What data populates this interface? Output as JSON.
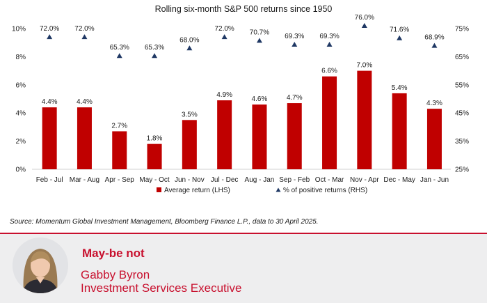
{
  "chart_data": {
    "type": "bar",
    "title": "Rolling six-month S&P 500 returns since 1950",
    "categories": [
      "Feb - Jul",
      "Mar - Aug",
      "Apr - Sep",
      "May - Oct",
      "Jun - Nov",
      "Jul - Dec",
      "Aug - Jan",
      "Sep - Feb",
      "Oct - Mar",
      "Nov - Apr",
      "Dec - May",
      "Jan - Jun"
    ],
    "series": [
      {
        "name": "Average return (LHS)",
        "type": "bar",
        "axis": "left",
        "color": "#c00000",
        "values": [
          4.4,
          4.4,
          2.7,
          1.8,
          3.5,
          4.9,
          4.6,
          4.7,
          6.6,
          7.0,
          5.4,
          4.3
        ],
        "labels": [
          "4.4%",
          "4.4%",
          "2.7%",
          "1.8%",
          "3.5%",
          "4.9%",
          "4.6%",
          "4.7%",
          "6.6%",
          "7.0%",
          "5.4%",
          "4.3%"
        ]
      },
      {
        "name": "% of positive returns (RHS)",
        "type": "scatter",
        "marker": "triangle",
        "axis": "right",
        "color": "#1f3864",
        "values": [
          72.0,
          72.0,
          65.3,
          65.3,
          68.0,
          72.0,
          70.7,
          69.3,
          69.3,
          76.0,
          71.6,
          68.9
        ],
        "labels": [
          "72.0%",
          "72.0%",
          "65.3%",
          "65.3%",
          "68.0%",
          "72.0%",
          "70.7%",
          "69.3%",
          "69.3%",
          "76.0%",
          "71.6%",
          "68.9%"
        ]
      }
    ],
    "left_axis": {
      "ylim": [
        0,
        10
      ],
      "ticks": [
        0,
        2,
        4,
        6,
        8,
        10
      ],
      "tick_labels": [
        "0%",
        "2%",
        "4%",
        "6%",
        "8%",
        "10%"
      ]
    },
    "right_axis": {
      "ylim": [
        25,
        75
      ],
      "ticks": [
        25,
        35,
        45,
        55,
        65,
        75
      ],
      "tick_labels": [
        "25%",
        "35%",
        "45%",
        "55%",
        "65%",
        "75%"
      ]
    },
    "grid": false,
    "legend": "bottom-center"
  },
  "source": "Source: Momentum Global Investment Management, Bloomberg Finance L.P., data to 30 April 2025.",
  "footer": {
    "headline": "May-be not",
    "name": "Gabby Byron",
    "role": "Investment Services Executive"
  }
}
